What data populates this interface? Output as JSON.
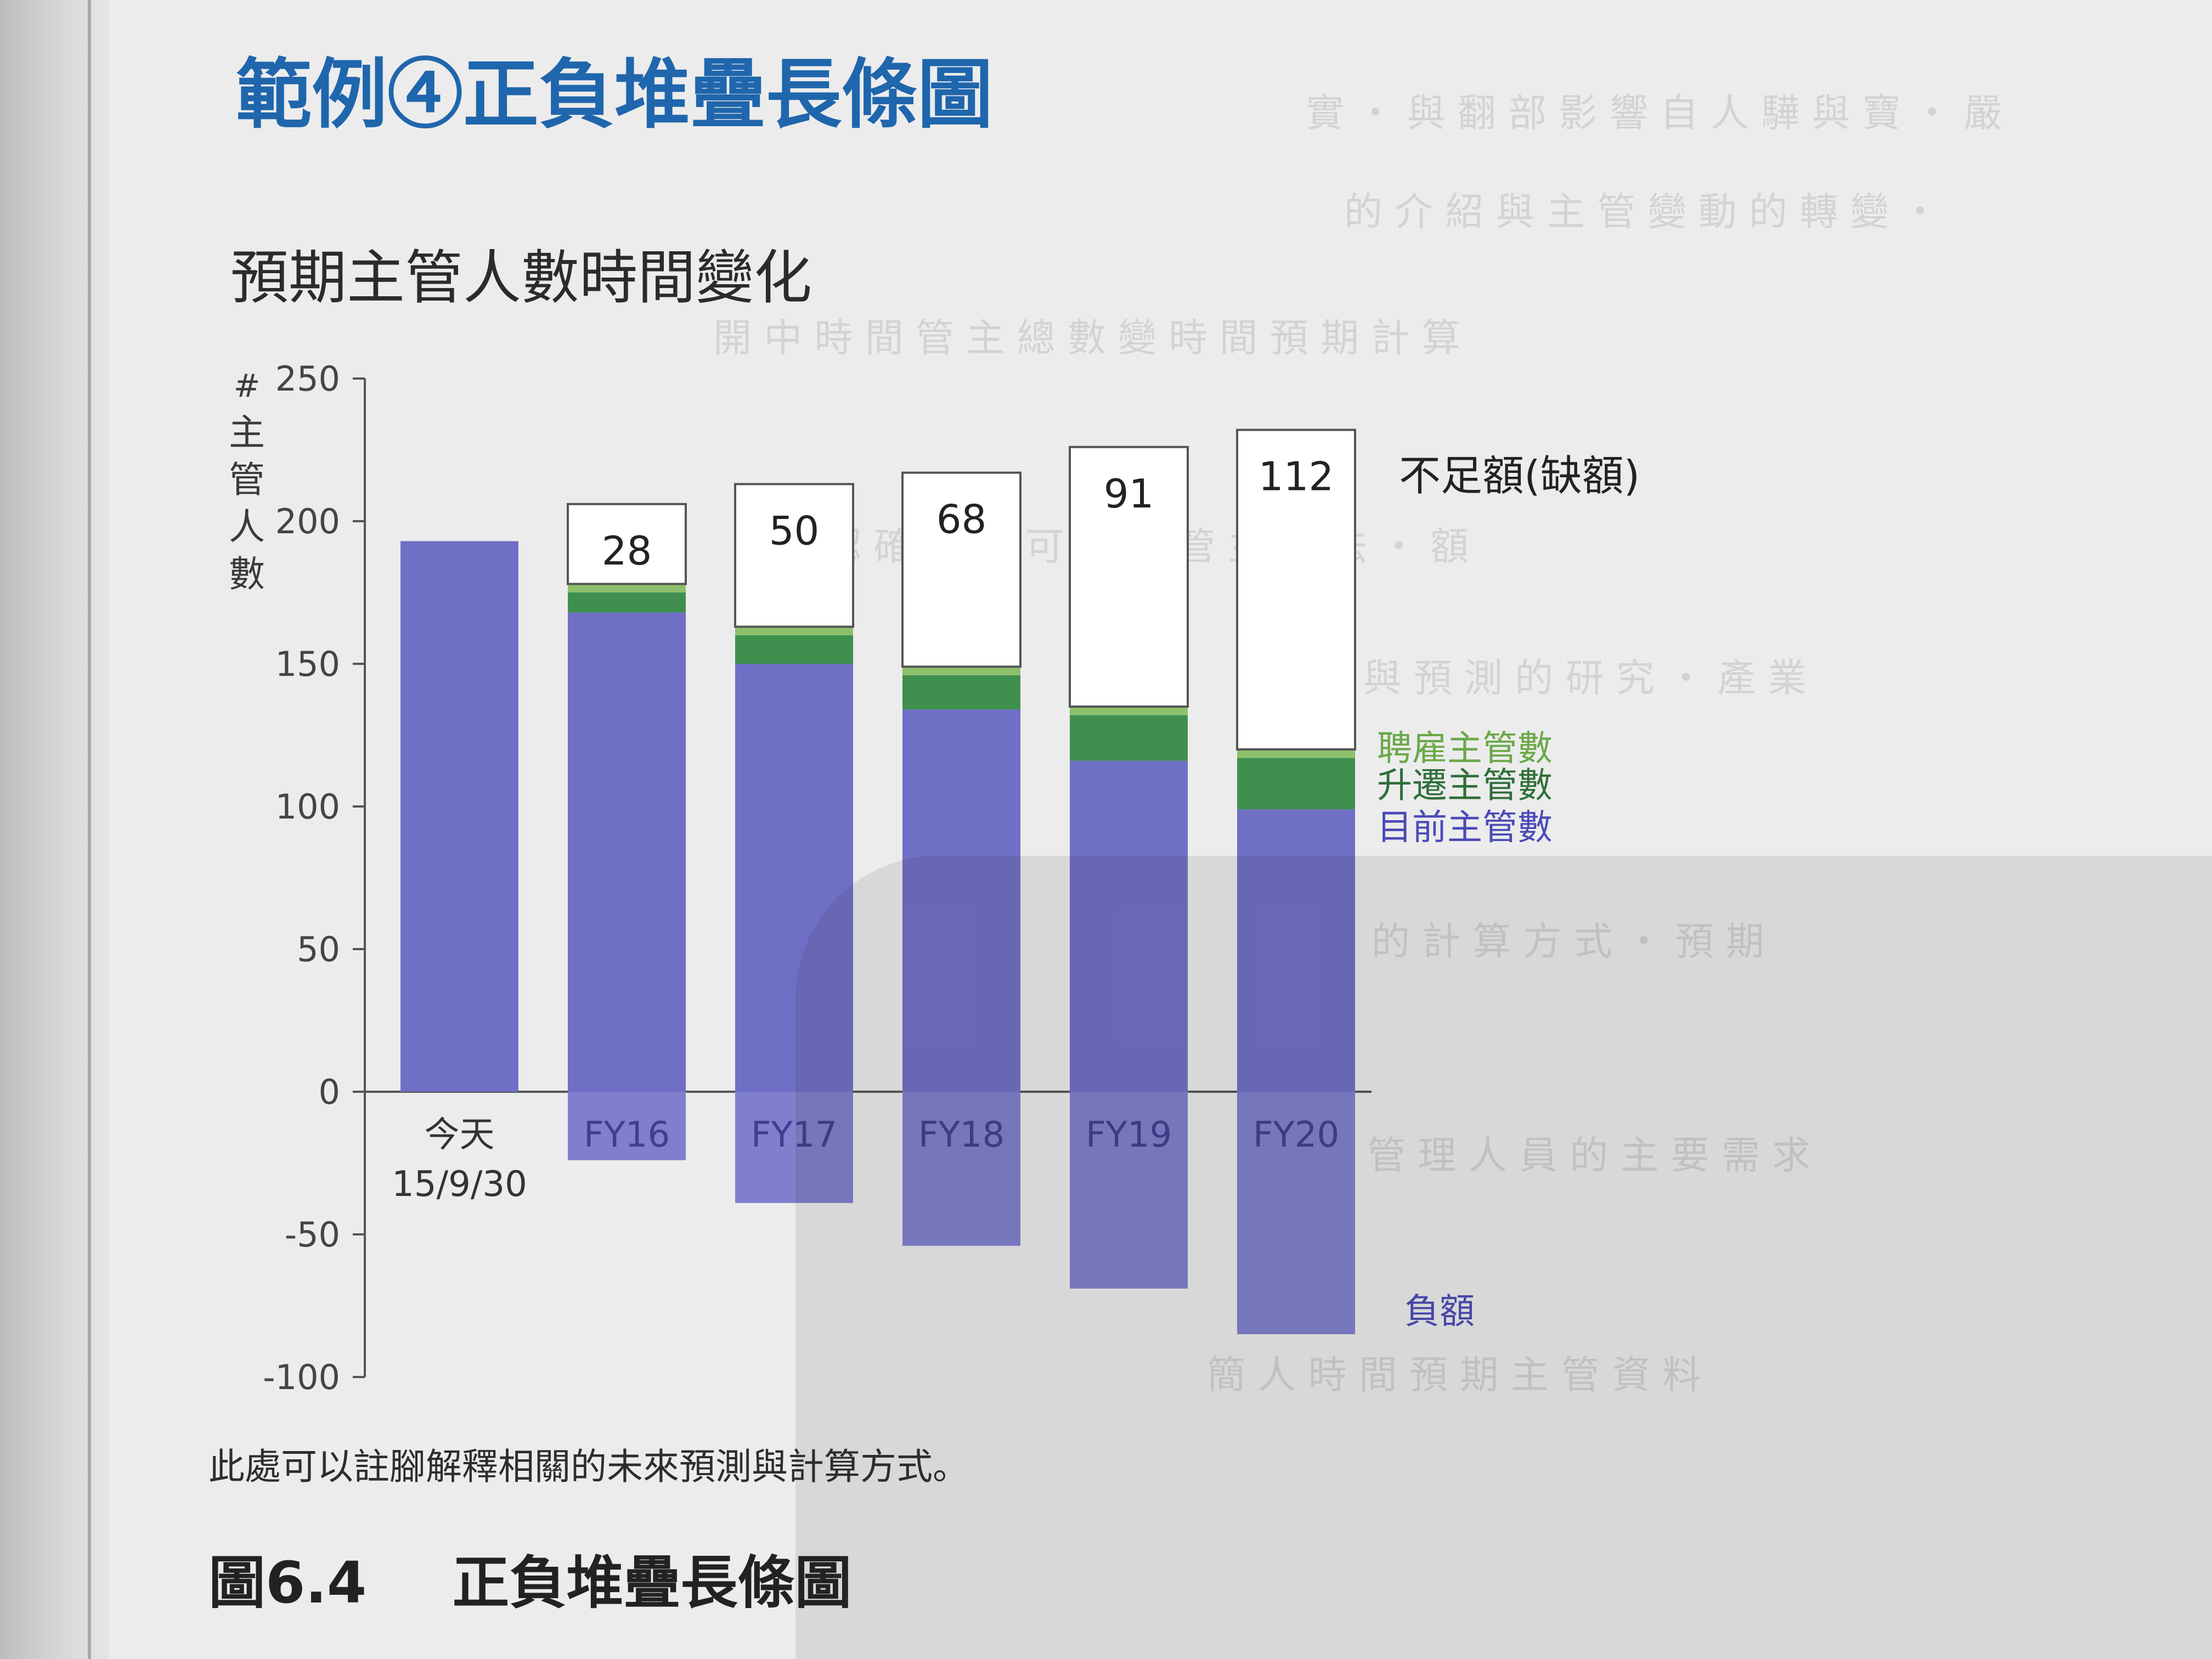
{
  "section_heading": "範例④正負堆疊長條圖",
  "chart_data": {
    "type": "bar",
    "title": "預期主管人數時間變化",
    "ylabel": "# 主管人數",
    "ylim": [
      -100,
      250
    ],
    "yticks": [
      250,
      200,
      150,
      100,
      50,
      0,
      -50,
      -100
    ],
    "categories": [
      "今天\n15/9/30",
      "FY16",
      "FY17",
      "FY18",
      "FY19",
      "FY20"
    ],
    "series": [
      {
        "name": "目前主管數",
        "values": [
          193,
          168,
          150,
          134,
          116,
          99
        ],
        "color": "#6f6fc6"
      },
      {
        "name": "升遷主管數",
        "values": [
          0,
          7,
          10,
          12,
          16,
          18
        ],
        "color": "#3f8f4f"
      },
      {
        "name": "聘雇主管數",
        "values": [
          0,
          3,
          3,
          3,
          3,
          3
        ],
        "color": "#8cc06a"
      },
      {
        "name": "不足額(缺額)",
        "values": [
          0,
          28,
          50,
          68,
          91,
          112
        ],
        "color": "#ffffff"
      },
      {
        "name": "負額",
        "values": [
          0,
          -24,
          -39,
          -54,
          -69,
          -85
        ],
        "color": "#7f7fce"
      }
    ],
    "shortfall_labels": [
      "",
      "28",
      "50",
      "68",
      "91",
      "112"
    ],
    "legend": [
      "聘雇主管數",
      "升遷主管數",
      "目前主管數"
    ],
    "legend_placement": "right",
    "annotations": [
      "不足額(缺額)",
      "負額"
    ]
  },
  "footnote": "此處可以註腳解釋相關的未來預測與計算方式。",
  "figure_caption": {
    "number": "圖6.4",
    "title": "正負堆疊長條圖"
  }
}
